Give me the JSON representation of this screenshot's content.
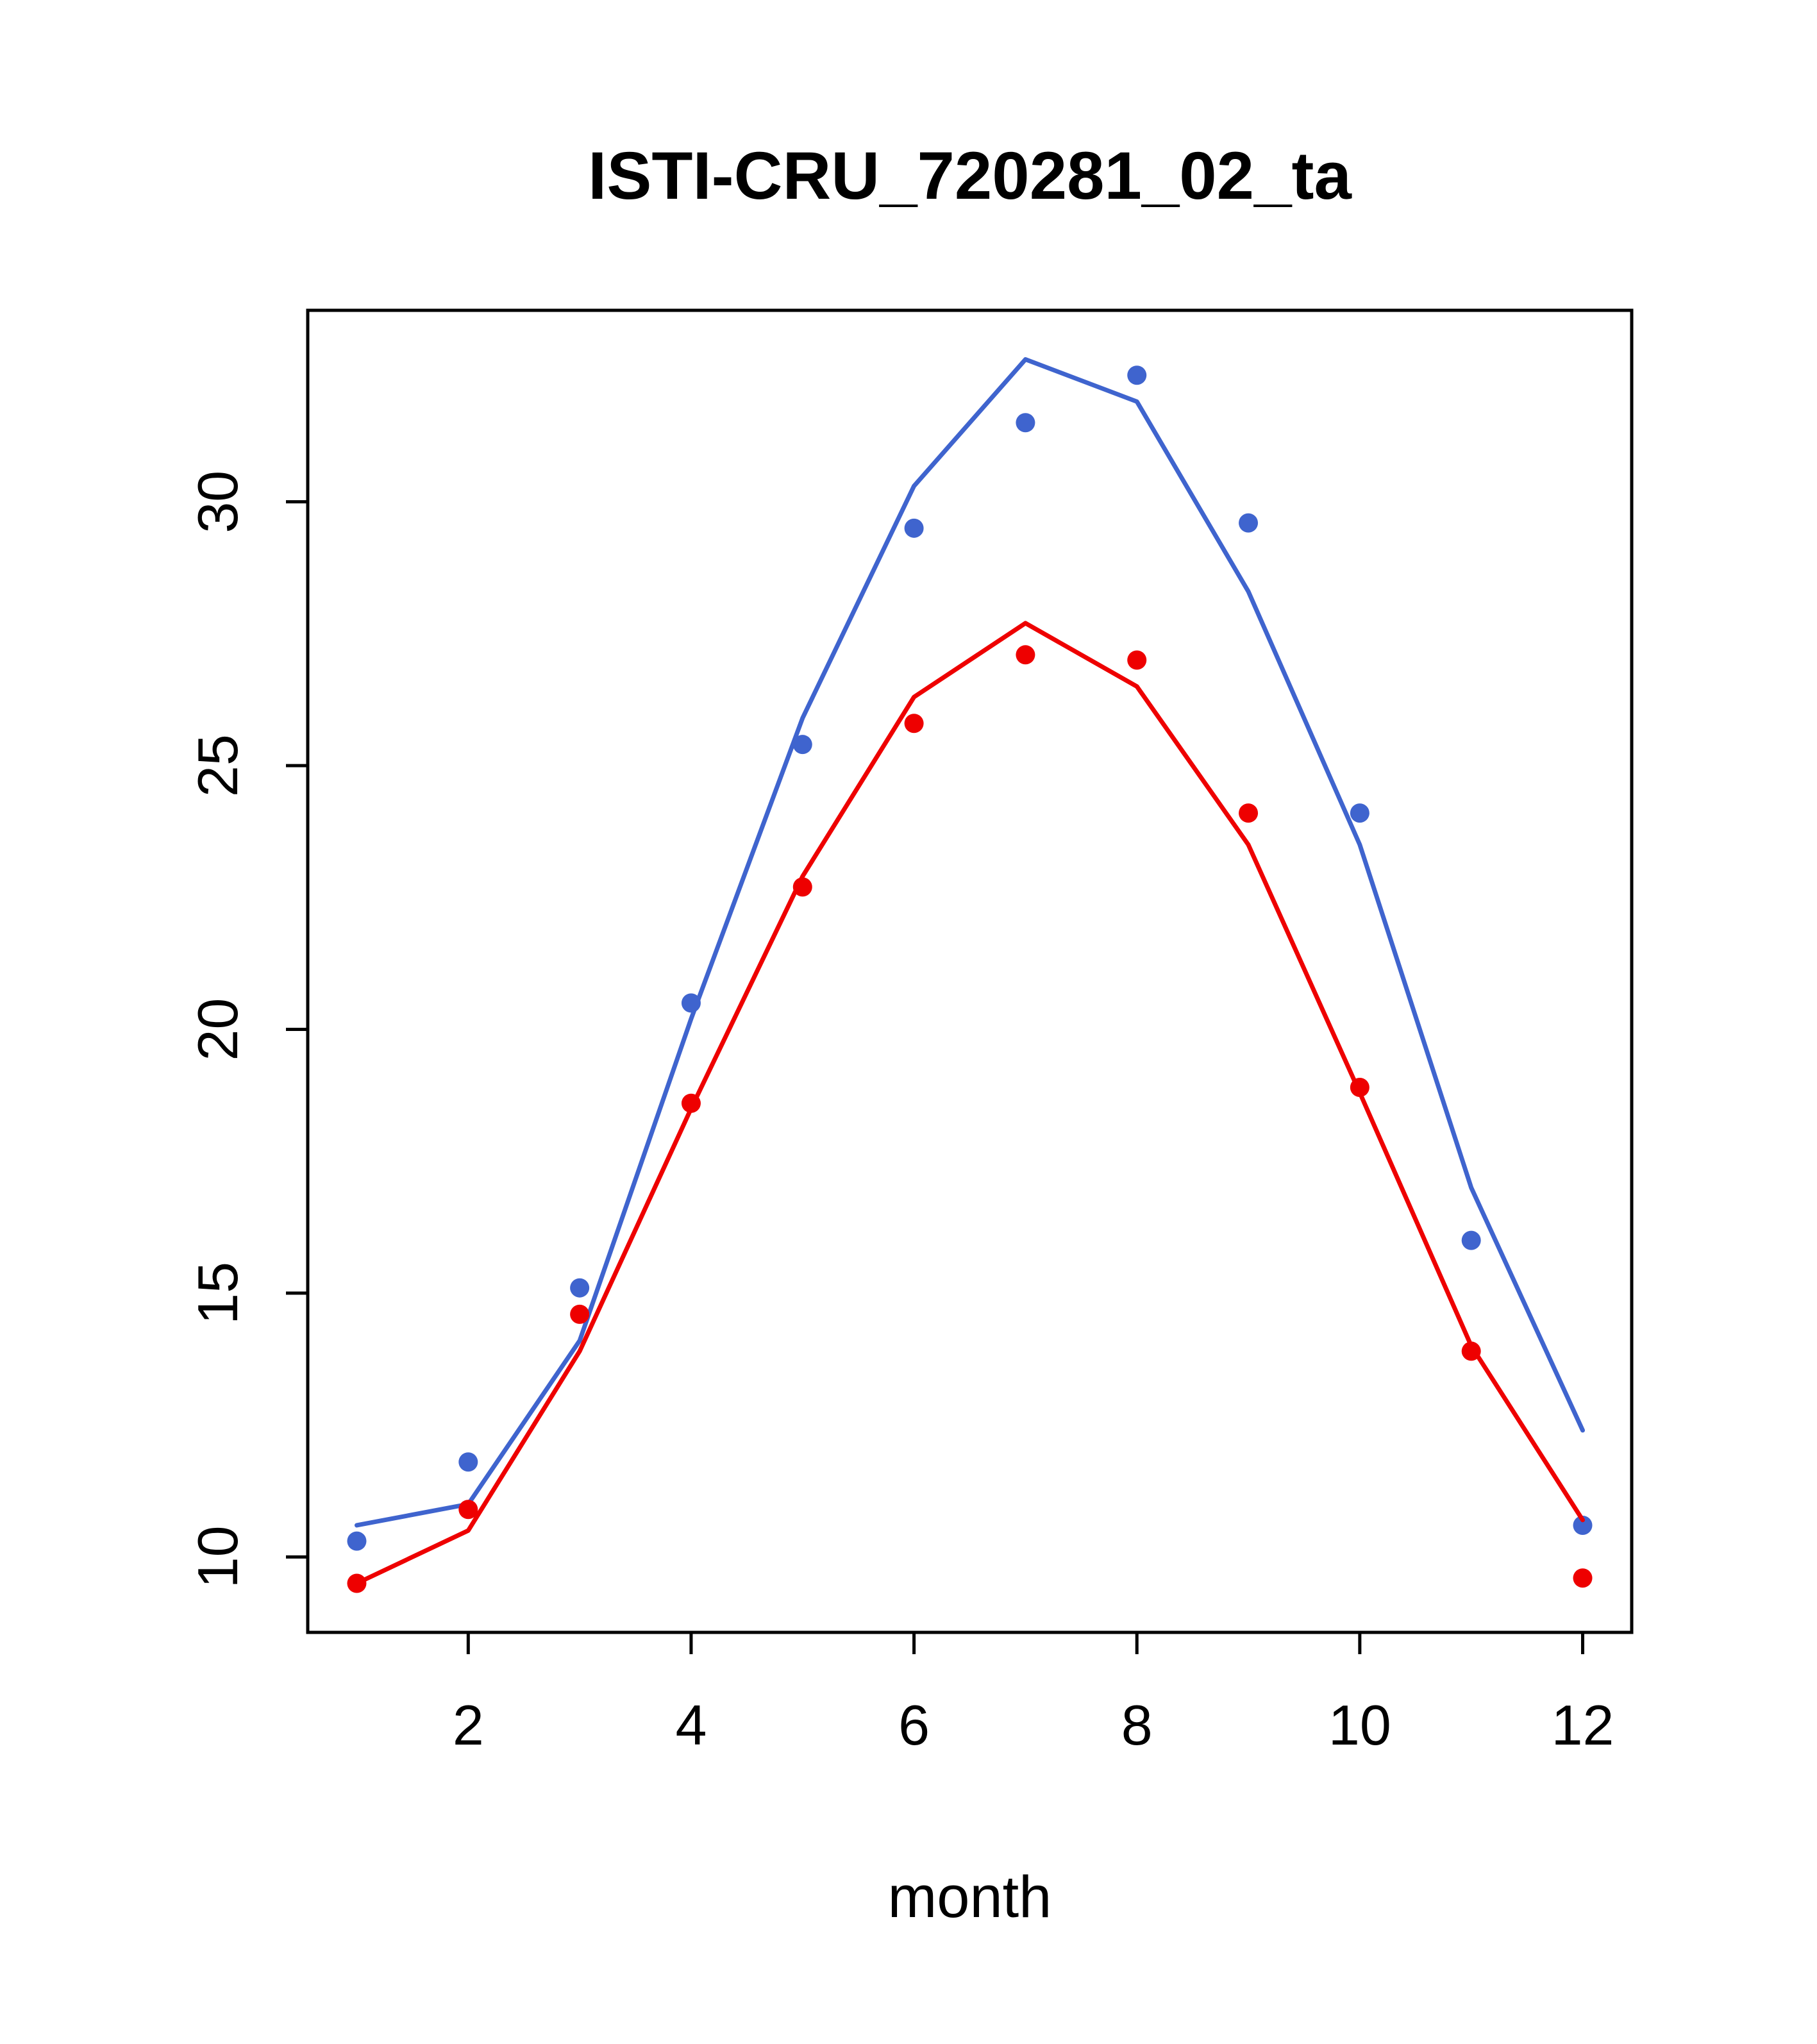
{
  "title": "ISTI-CRU_720281_02_ta",
  "colors": {
    "blue": "#3F64CE",
    "red": "#EE0000",
    "axis": "#000000",
    "background": "#FFFFFF"
  },
  "chart_data": {
    "type": "line",
    "title": "ISTI-CRU_720281_02_ta",
    "xlabel": "month",
    "ylabel": "",
    "grid": false,
    "legend": "none",
    "x": [
      1,
      2,
      3,
      4,
      5,
      6,
      7,
      8,
      9,
      10,
      11,
      12
    ],
    "xticks": [
      2,
      4,
      6,
      8,
      10,
      12
    ],
    "yticks": [
      10,
      15,
      20,
      25,
      30
    ],
    "xlim": [
      0.56,
      12.44
    ],
    "ylim": [
      8.57,
      33.63
    ],
    "series": [
      {
        "name": "blue-line",
        "kind": "line",
        "color": "#3F64CE",
        "values": [
          10.6,
          11.0,
          14.1,
          20.2,
          25.9,
          30.3,
          32.7,
          31.9,
          28.3,
          23.5,
          17.0,
          12.4
        ]
      },
      {
        "name": "blue-points",
        "kind": "scatter",
        "color": "#3F64CE",
        "values": [
          10.3,
          11.8,
          15.1,
          20.5,
          25.4,
          29.5,
          31.5,
          32.4,
          29.6,
          24.1,
          16.0,
          10.6
        ]
      },
      {
        "name": "red-line",
        "kind": "line",
        "color": "#EE0000",
        "values": [
          9.5,
          10.5,
          13.9,
          18.5,
          22.9,
          26.3,
          27.7,
          26.5,
          23.5,
          18.8,
          14.0,
          10.7
        ]
      },
      {
        "name": "red-points",
        "kind": "scatter",
        "color": "#EE0000",
        "values": [
          9.5,
          10.9,
          14.6,
          18.6,
          22.7,
          25.8,
          27.1,
          27.0,
          24.1,
          18.9,
          13.9,
          9.6
        ]
      }
    ]
  }
}
